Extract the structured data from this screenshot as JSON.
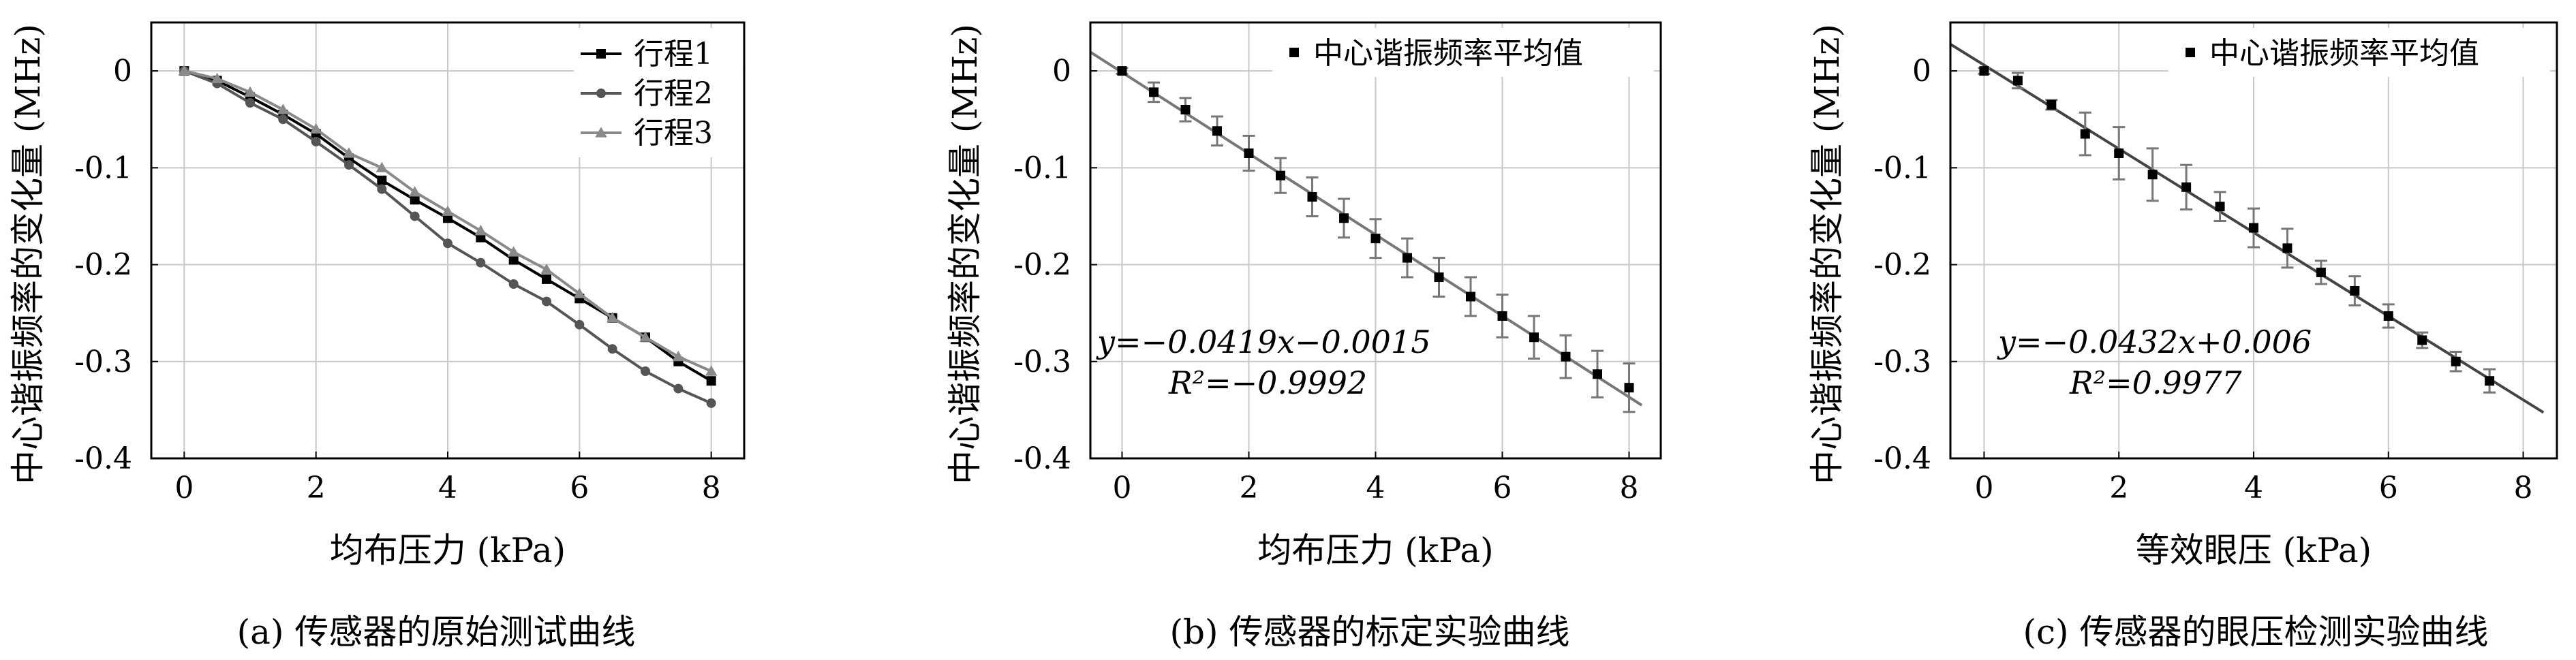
{
  "chart_data": [
    {
      "type": "line",
      "caption": "(a) 传感器的原始测试曲线",
      "xlabel": "均布压力 (kPa)",
      "ylabel": "中心谐振频率的变化量 (MHz)",
      "xlim": [
        -0.5,
        8.5
      ],
      "ylim": [
        -0.4,
        0.05
      ],
      "xticks": [
        0,
        2,
        4,
        6,
        8
      ],
      "yticks": [
        0,
        -0.1,
        -0.2,
        -0.3,
        -0.4
      ],
      "ytick_labels": [
        "0",
        "-0.1",
        "-0.2",
        "-0.3",
        "-0.4"
      ],
      "grid": true,
      "legend_position": "top-right",
      "x": [
        0,
        0.5,
        1,
        1.5,
        2,
        2.5,
        3,
        3.5,
        4,
        4.5,
        5,
        5.5,
        6,
        6.5,
        7,
        7.5,
        8
      ],
      "series": [
        {
          "name": "行程1",
          "color": "#000000",
          "marker": "square",
          "values": [
            0,
            -0.01,
            -0.027,
            -0.045,
            -0.065,
            -0.09,
            -0.113,
            -0.133,
            -0.152,
            -0.172,
            -0.195,
            -0.215,
            -0.235,
            -0.255,
            -0.275,
            -0.3,
            -0.32
          ]
        },
        {
          "name": "行程2",
          "color": "#555555",
          "marker": "circle",
          "values": [
            0,
            -0.013,
            -0.033,
            -0.05,
            -0.073,
            -0.097,
            -0.122,
            -0.15,
            -0.178,
            -0.198,
            -0.22,
            -0.238,
            -0.262,
            -0.287,
            -0.31,
            -0.328,
            -0.343
          ]
        },
        {
          "name": "行程3",
          "color": "#8a8a8a",
          "marker": "triangle",
          "values": [
            0,
            -0.008,
            -0.022,
            -0.04,
            -0.06,
            -0.085,
            -0.1,
            -0.125,
            -0.145,
            -0.165,
            -0.187,
            -0.205,
            -0.23,
            -0.255,
            -0.275,
            -0.295,
            -0.31
          ]
        }
      ]
    },
    {
      "type": "scatter",
      "caption": "(b) 传感器的标定实验曲线",
      "xlabel": "均布压力 (kPa)",
      "ylabel": "中心谐振频率的变化量 (MHz)",
      "xlim": [
        -0.5,
        8.5
      ],
      "ylim": [
        -0.4,
        0.05
      ],
      "xticks": [
        0,
        2,
        4,
        6,
        8
      ],
      "yticks": [
        0,
        -0.1,
        -0.2,
        -0.3,
        -0.4
      ],
      "ytick_labels": [
        "0",
        "-0.1",
        "-0.2",
        "-0.3",
        "-0.4"
      ],
      "grid": true,
      "legend_position": "top-right",
      "series": [
        {
          "name": "中心谐振频率平均值",
          "color": "#000000",
          "marker": "square",
          "x": [
            0,
            0.5,
            1,
            1.5,
            2,
            2.5,
            3,
            3.5,
            4,
            4.5,
            5,
            5.5,
            6,
            6.5,
            7,
            7.5,
            8
          ],
          "values": [
            0,
            -0.022,
            -0.04,
            -0.062,
            -0.085,
            -0.108,
            -0.13,
            -0.152,
            -0.173,
            -0.193,
            -0.213,
            -0.233,
            -0.253,
            -0.275,
            -0.295,
            -0.313,
            -0.327
          ],
          "errors": [
            0.003,
            0.01,
            0.012,
            0.015,
            0.018,
            0.018,
            0.02,
            0.02,
            0.02,
            0.02,
            0.02,
            0.02,
            0.022,
            0.022,
            0.022,
            0.024,
            0.025
          ]
        }
      ],
      "fit": {
        "slope": -0.0419,
        "intercept": -0.0015,
        "x_range": [
          -0.5,
          8.2
        ],
        "color": "#777777"
      },
      "annotation_eq": "y=−0.0419x−0.0015",
      "annotation_r2": "R²=−0.9992"
    },
    {
      "type": "scatter",
      "caption": "(c) 传感器的眼压检测实验曲线",
      "xlabel": "等效眼压 (kPa)",
      "ylabel": "中心谐振频率的变化量 (MHz)",
      "xlim": [
        -0.5,
        8.5
      ],
      "ylim": [
        -0.4,
        0.05
      ],
      "xticks": [
        0,
        2,
        4,
        6,
        8
      ],
      "yticks": [
        0,
        -0.1,
        -0.2,
        -0.3,
        -0.4
      ],
      "ytick_labels": [
        "0",
        "-0.1",
        "-0.2",
        "-0.3",
        "-0.4"
      ],
      "grid": true,
      "legend_position": "top-right",
      "series": [
        {
          "name": "中心谐振频率平均值",
          "color": "#000000",
          "marker": "square",
          "x": [
            0,
            0.5,
            1,
            1.5,
            2,
            2.5,
            3,
            3.5,
            4,
            4.5,
            5,
            5.5,
            6,
            6.5,
            7,
            7.5
          ],
          "values": [
            0,
            -0.01,
            -0.035,
            -0.065,
            -0.085,
            -0.107,
            -0.12,
            -0.14,
            -0.162,
            -0.183,
            -0.208,
            -0.227,
            -0.253,
            -0.278,
            -0.3,
            -0.32
          ],
          "errors": [
            0.003,
            0.008,
            0.005,
            0.022,
            0.027,
            0.027,
            0.023,
            0.015,
            0.02,
            0.02,
            0.012,
            0.015,
            0.012,
            0.008,
            0.01,
            0.012
          ]
        }
      ],
      "fit": {
        "slope": -0.0432,
        "intercept": 0.006,
        "x_range": [
          -0.5,
          8.3
        ],
        "color": "#444444"
      },
      "annotation_eq": "y=−0.0432x+0.006",
      "annotation_r2": "R²=0.9977"
    }
  ]
}
